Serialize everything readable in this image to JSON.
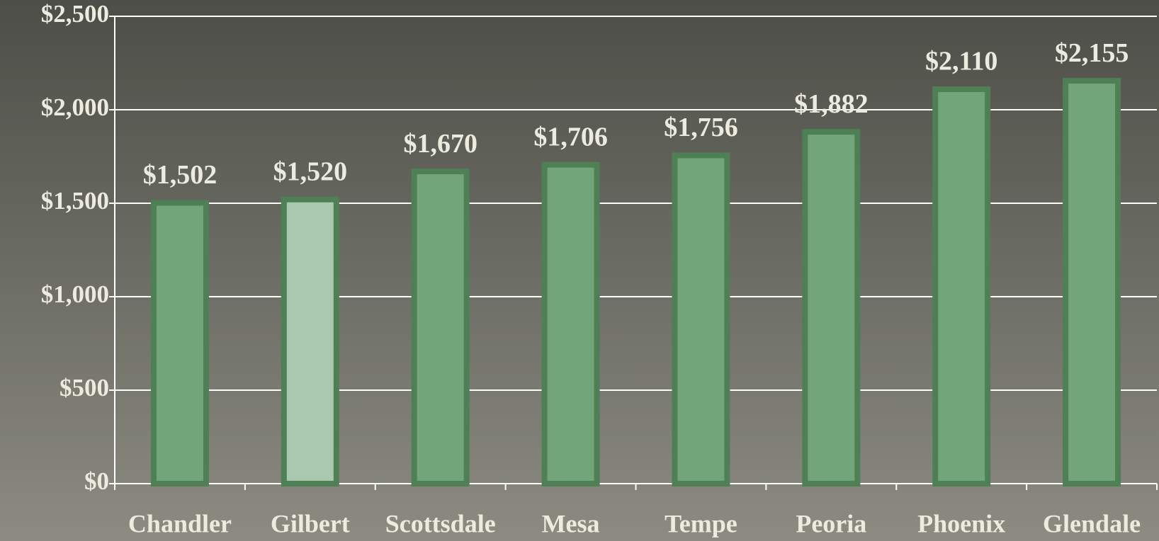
{
  "chart_data": {
    "type": "bar",
    "categories": [
      "Chandler",
      "Gilbert",
      "Scottsdale",
      "Mesa",
      "Tempe",
      "Peoria",
      "Phoenix",
      "Glendale"
    ],
    "values": [
      1502,
      1520,
      1670,
      1706,
      1756,
      1882,
      2110,
      2155
    ],
    "value_labels": [
      "$1,502",
      "$1,520",
      "$1,670",
      "$1,706",
      "$1,756",
      "$1,882",
      "$2,110",
      "$2,155"
    ],
    "colors": [
      "#72a57a",
      "#a8c9ad",
      "#72a57a",
      "#72a57a",
      "#72a57a",
      "#72a57a",
      "#72a57a",
      "#72a57a"
    ],
    "ylim": [
      0,
      2500
    ],
    "yticks": [
      {
        "value": 0,
        "label": "$0"
      },
      {
        "value": 500,
        "label": "$500"
      },
      {
        "value": 1000,
        "label": "$1,000"
      },
      {
        "value": 1500,
        "label": "$1,500"
      },
      {
        "value": 2000,
        "label": "$2,000"
      },
      {
        "value": 2500,
        "label": "$2,500"
      }
    ],
    "grid": true
  }
}
